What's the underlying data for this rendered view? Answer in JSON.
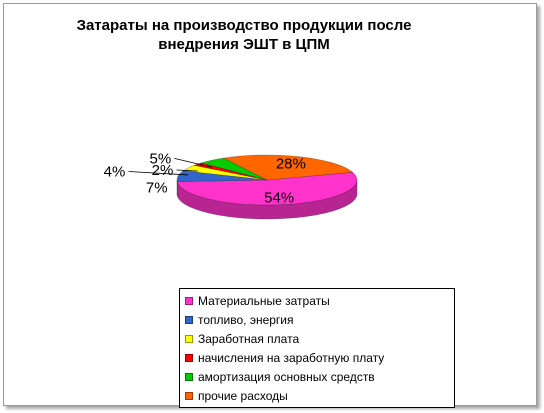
{
  "chart_data": {
    "type": "pie",
    "title": "Затараты на производство продукции после внедрения ЭШТ в ЦПМ",
    "style": "3d",
    "legend_position": "bottom-right",
    "categories": [
      "Материальные затраты",
      "топливо, энергия",
      "Заработная плата",
      "начисления на заработную плату",
      "амортизация основных средств",
      "прочие расходы"
    ],
    "values": [
      54,
      7,
      4,
      2,
      5,
      28
    ],
    "labels": [
      "54%",
      "7%",
      "4%",
      "2%",
      "5%",
      "28%"
    ],
    "colors": [
      "#ff33cc",
      "#3366cc",
      "#ffff00",
      "#ff0000",
      "#00cc00",
      "#ff6600"
    ]
  }
}
